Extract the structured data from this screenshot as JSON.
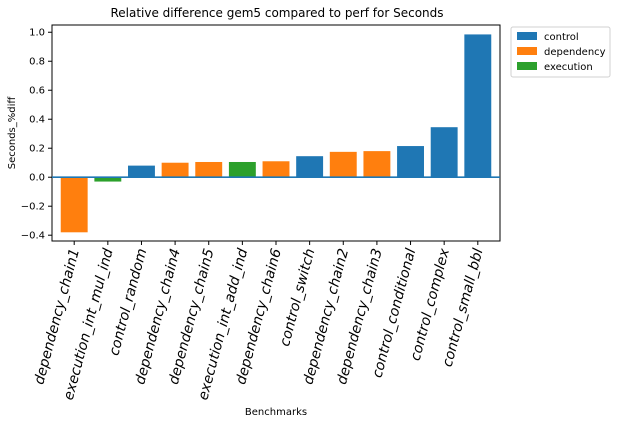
{
  "chart_data": {
    "type": "bar",
    "title": "Relative difference gem5 compared to perf for Seconds",
    "xlabel": "Benchmarks",
    "ylabel": "Seconds_%diff",
    "ylim": [
      -0.44,
      1.05
    ],
    "yticks": [
      -0.4,
      -0.2,
      0.0,
      0.2,
      0.4,
      0.6,
      0.8,
      1.0
    ],
    "ytick_labels": [
      "−0.4",
      "−0.2",
      "0.0",
      "0.2",
      "0.4",
      "0.6",
      "0.8",
      "1.0"
    ],
    "grid": false,
    "legend_position": "outside-top-right",
    "reference_line": {
      "y": 0.0,
      "color": "#1f77b4"
    },
    "legend": [
      {
        "name": "control",
        "color": "#1f77b4"
      },
      {
        "name": "dependency",
        "color": "#ff7f0e"
      },
      {
        "name": "execution",
        "color": "#2ca02c"
      }
    ],
    "categories": [
      "dependency_chain1",
      "execution_int_mul_ind",
      "control_random",
      "dependency_chain4",
      "dependency_chain5",
      "execution_int_add_ind",
      "dependency_chain6",
      "control_switch",
      "dependency_chain2",
      "dependency_chain3",
      "control_conditional",
      "control_complex",
      "control_small_bbl"
    ],
    "values": [
      -0.38,
      -0.03,
      0.08,
      0.1,
      0.105,
      0.105,
      0.11,
      0.145,
      0.175,
      0.18,
      0.215,
      0.345,
      0.985
    ],
    "groups": [
      "dependency",
      "execution",
      "control",
      "dependency",
      "dependency",
      "execution",
      "dependency",
      "control",
      "dependency",
      "dependency",
      "control",
      "control",
      "control"
    ]
  }
}
